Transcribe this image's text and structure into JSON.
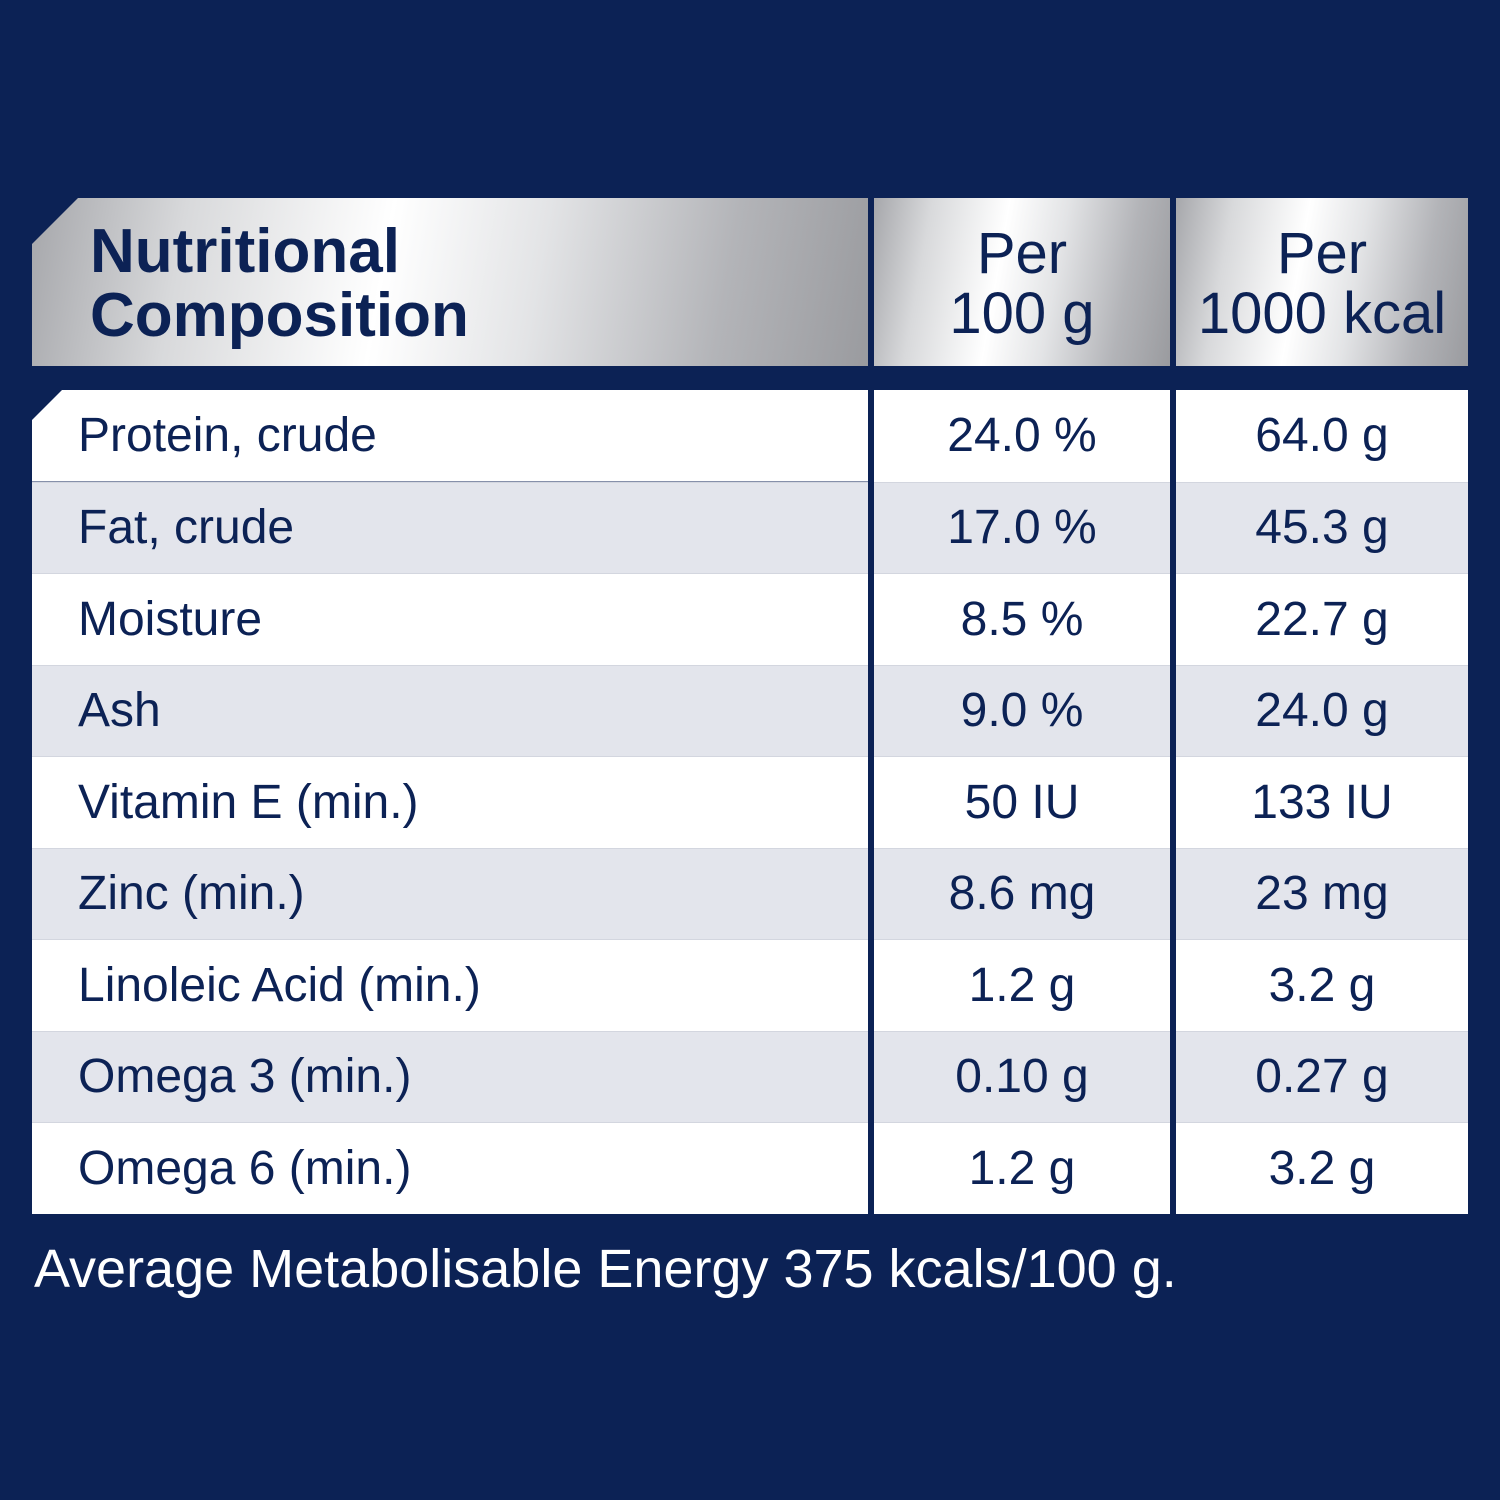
{
  "table": {
    "header": {
      "col1_line1": "Nutritional",
      "col1_line2": "Composition",
      "col2_line1": "Per",
      "col2_line2": "100 g",
      "col3_line1": "Per",
      "col3_line2": "1000 kcal"
    },
    "rows": [
      {
        "label": "Protein, crude",
        "per100g": "24.0 %",
        "per1000kcal": "64.0 g"
      },
      {
        "label": "Fat, crude",
        "per100g": "17.0 %",
        "per1000kcal": "45.3 g"
      },
      {
        "label": "Moisture",
        "per100g": "8.5 %",
        "per1000kcal": "22.7 g"
      },
      {
        "label": "Ash",
        "per100g": "9.0 %",
        "per1000kcal": "24.0 g"
      },
      {
        "label": "Vitamin E (min.)",
        "per100g": "50 IU",
        "per1000kcal": "133 IU"
      },
      {
        "label": "Zinc (min.)",
        "per100g": "8.6 mg",
        "per1000kcal": "23 mg"
      },
      {
        "label": "Linoleic Acid (min.)",
        "per100g": "1.2 g",
        "per1000kcal": "3.2 g"
      },
      {
        "label": "Omega 3 (min.)",
        "per100g": "0.10 g",
        "per1000kcal": "0.27 g"
      },
      {
        "label": "Omega 6 (min.)",
        "per100g": "1.2 g",
        "per1000kcal": "3.2 g"
      }
    ]
  },
  "footnote": "Average Metabolisable Energy 375 kcals/100 g.",
  "colors": {
    "background": "#0c2255",
    "text": "#0c2255",
    "row_alt": "#e3e5ec",
    "footnote_text": "#ffffff"
  }
}
